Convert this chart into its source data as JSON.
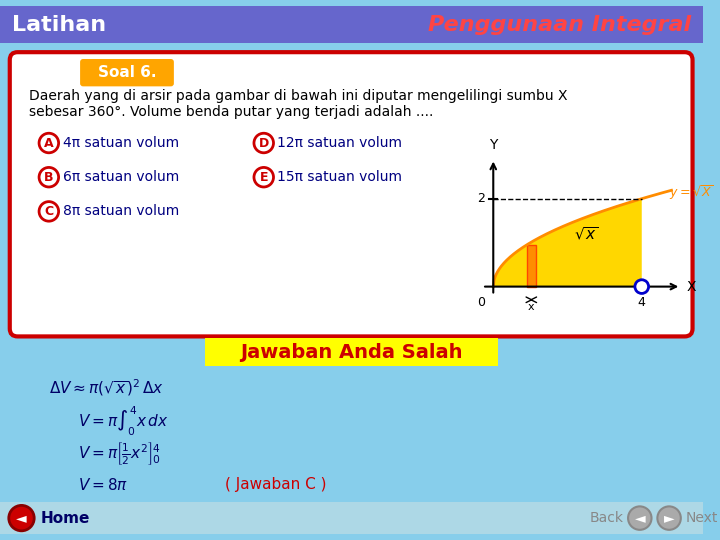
{
  "bg_color": "#87CEEB",
  "header_bg": "#6666CC",
  "header_left": "Latihan",
  "header_right": "Penggunaan Integral",
  "header_left_color": "#FFFFFF",
  "header_right_color": "#FF4444",
  "card_bg": "#FFFFFF",
  "card_border": "#CC0000",
  "soal_label": "Soal 6.",
  "soal_label_bg": "#FFA500",
  "soal_label_color": "#FFFFFF",
  "problem_text1": "Daerah yang di arsir pada gambar di bawah ini diputar mengelilingi sumbu X",
  "problem_text2": "sebesar 360°. Volume benda putar yang terjadi adalah ....",
  "options": [
    {
      "label": "A",
      "text": "4π satuan volum"
    },
    {
      "label": "D",
      "text": "12π satuan volum"
    },
    {
      "label": "B",
      "text": "6π satuan volum"
    },
    {
      "label": "E",
      "text": "15π satuan volum"
    },
    {
      "label": "C",
      "text": "8π satuan volum"
    }
  ],
  "option_circle_color": "#CC0000",
  "option_text_color": "#000080",
  "jawaban_bg": "#FFFF00",
  "jawaban_text": "Jawaban Anda Salah",
  "jawaban_color": "#CC0000",
  "formula_color": "#000066",
  "jawaban_c_color": "#CC0000",
  "bottom_bg": "#ADD8E6",
  "nav_color": "#888888"
}
